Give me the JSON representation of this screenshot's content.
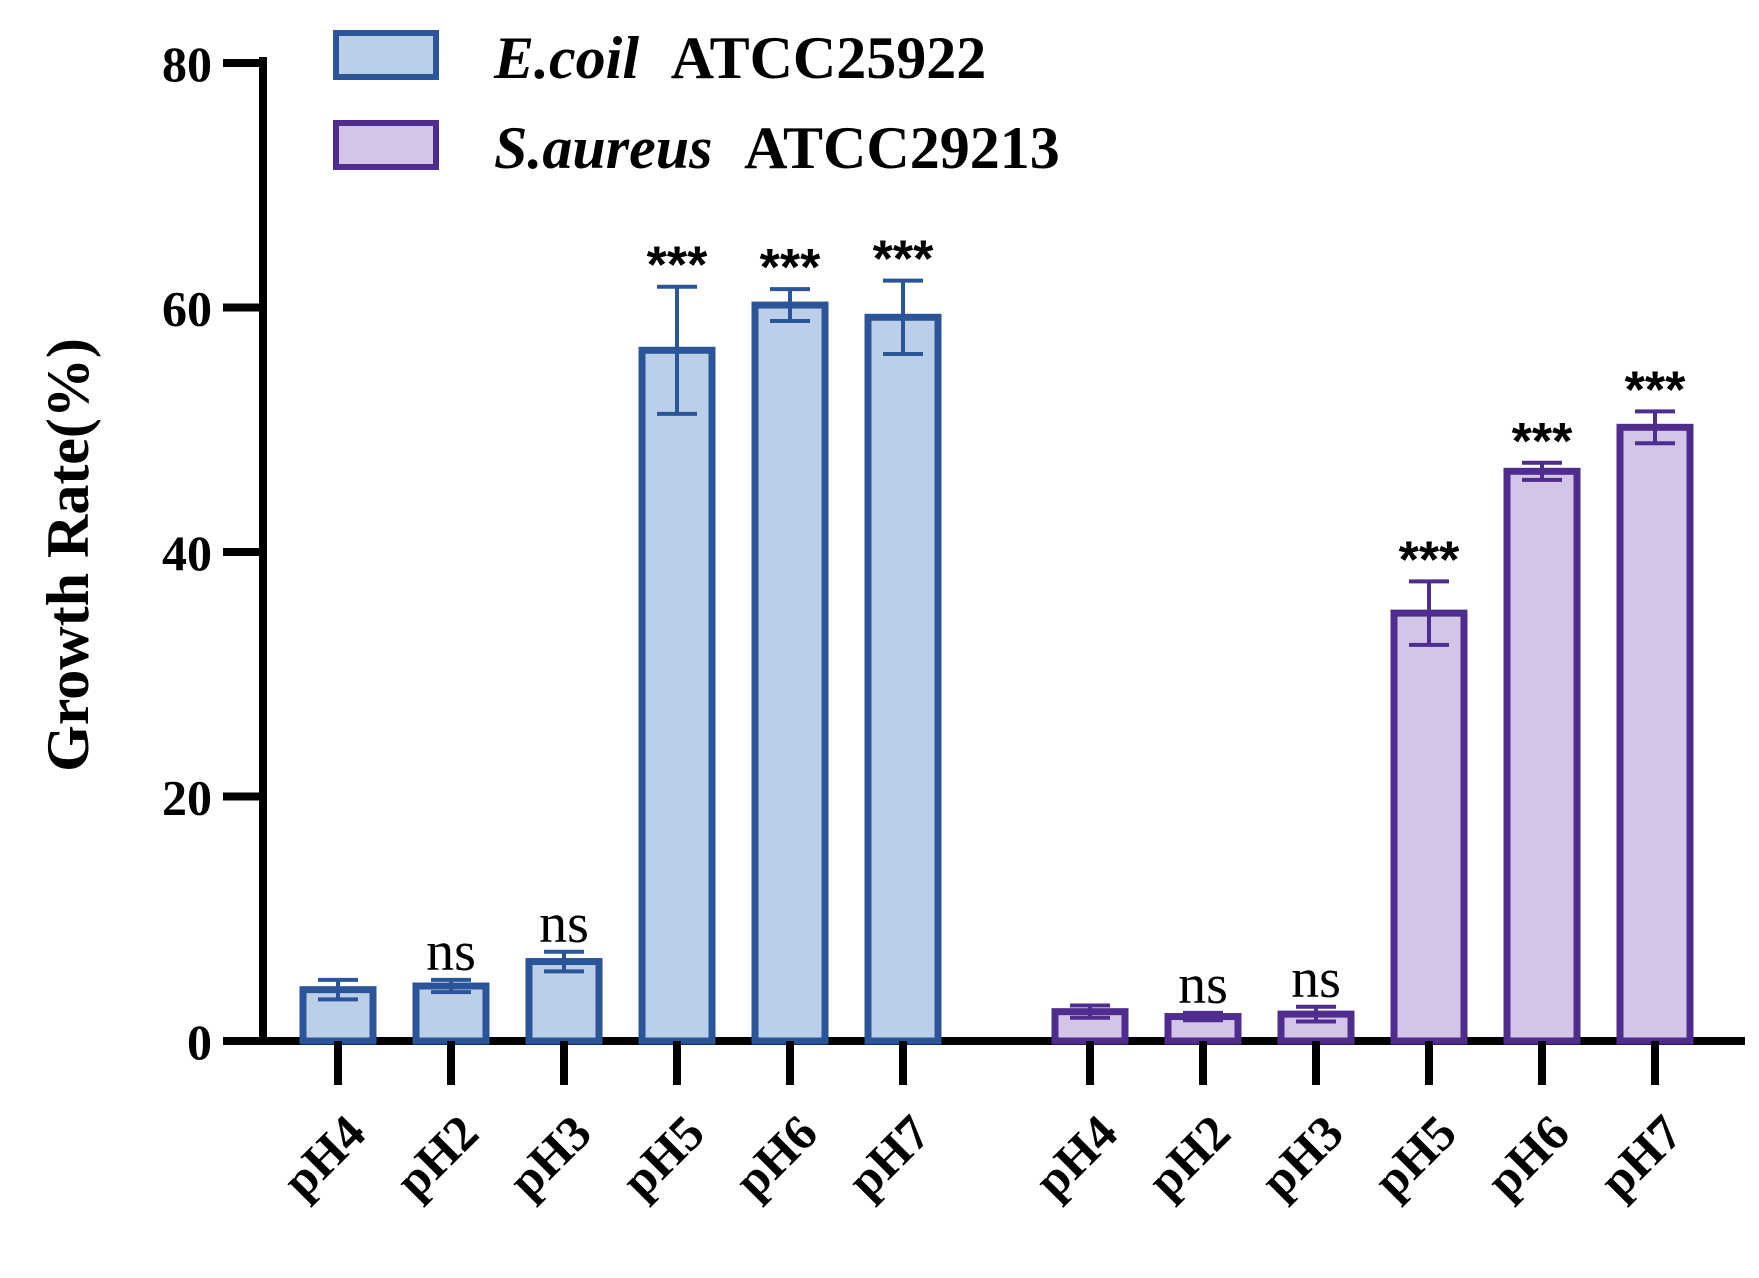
{
  "chart_data": {
    "type": "bar",
    "title": "",
    "xlabel": "",
    "ylabel": "Growth Rate(%)",
    "ylim": [
      0,
      80
    ],
    "yticks": [
      0,
      20,
      40,
      60,
      80
    ],
    "grid": false,
    "legend_position": "top",
    "series": [
      {
        "name_italic": "E.coil",
        "name_rest": "ATCC25922",
        "stroke": "#2c5599",
        "fill": "#bccfe8",
        "categories": [
          "pH4",
          "pH2",
          "pH3",
          "pH5",
          "pH6",
          "pH7"
        ],
        "values": [
          4.2,
          4.5,
          6.5,
          56.5,
          60.2,
          59.2
        ],
        "errors": [
          0.8,
          0.5,
          0.8,
          5.2,
          1.3,
          3.0
        ],
        "significance": [
          "",
          "ns",
          "ns",
          "***",
          "***",
          "***"
        ]
      },
      {
        "name_italic": "S.aureus",
        "name_rest": "ATCC29213",
        "stroke": "#4e2d8f",
        "fill": "#d4c5e8",
        "categories": [
          "pH4",
          "pH2",
          "pH3",
          "pH5",
          "pH6",
          "pH7"
        ],
        "values": [
          2.4,
          2.0,
          2.2,
          35.0,
          46.6,
          50.2
        ],
        "errors": [
          0.5,
          0.3,
          0.6,
          2.6,
          0.7,
          1.3
        ],
        "significance": [
          "",
          "ns",
          "ns",
          "***",
          "***",
          "***"
        ]
      }
    ]
  }
}
